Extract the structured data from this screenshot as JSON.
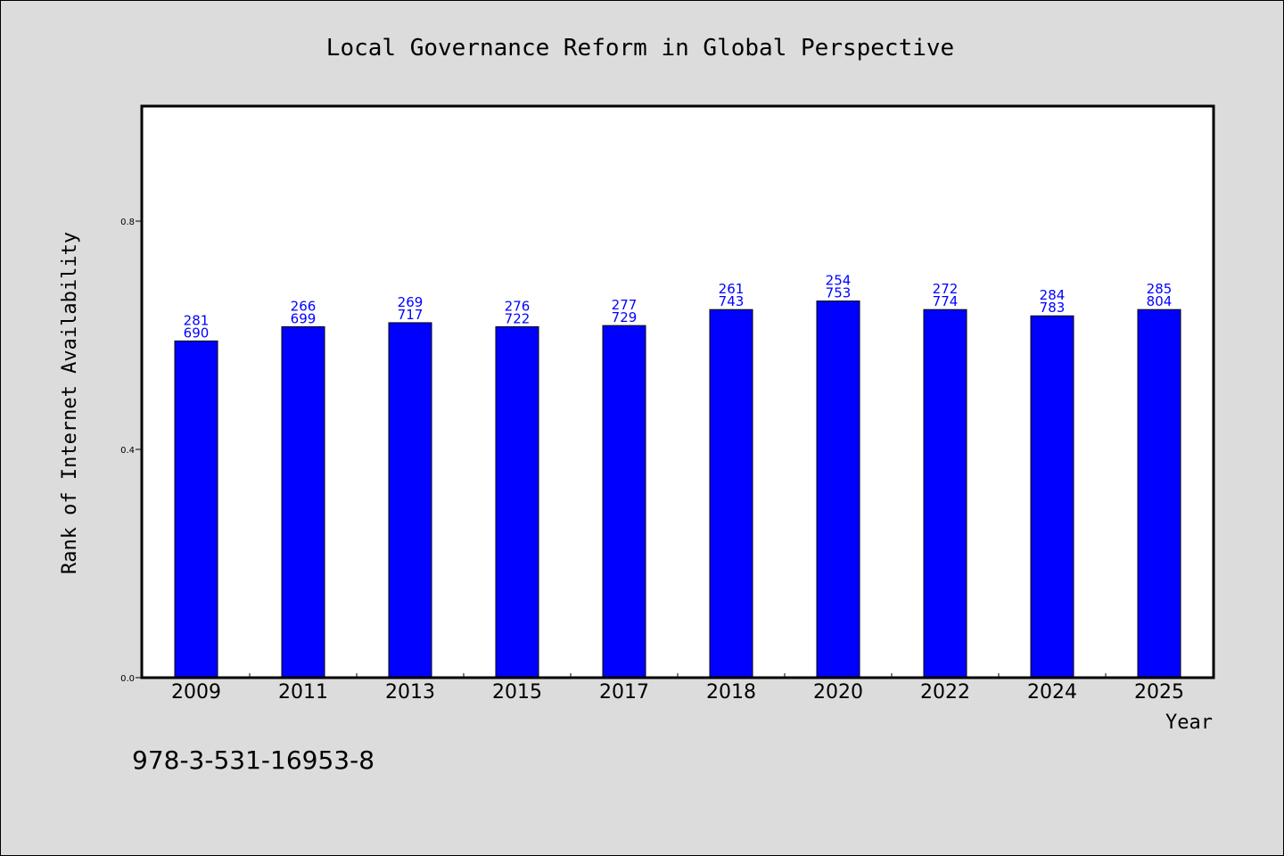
{
  "chart_data": {
    "type": "bar",
    "title": "Local Governance Reform in Global Perspective",
    "xlabel": "Year",
    "ylabel": "Rank of Internet Availability",
    "categories": [
      "2009",
      "2011",
      "2013",
      "2015",
      "2017",
      "2018",
      "2020",
      "2022",
      "2024",
      "2025"
    ],
    "values": [
      0.59,
      0.615,
      0.622,
      0.615,
      0.617,
      0.645,
      0.66,
      0.645,
      0.634,
      0.645
    ],
    "bar_labels": [
      [
        "281",
        "690"
      ],
      [
        "266",
        "699"
      ],
      [
        "269",
        "717"
      ],
      [
        "276",
        "722"
      ],
      [
        "277",
        "729"
      ],
      [
        "261",
        "743"
      ],
      [
        "254",
        "753"
      ],
      [
        "272",
        "774"
      ],
      [
        "284",
        "783"
      ],
      [
        "285",
        "804"
      ]
    ],
    "ylim": [
      0,
      1.0
    ],
    "yticks": [
      0.0,
      0.4,
      0.8
    ],
    "ytick_labels": [
      "0.0",
      "0.4",
      "0.8"
    ],
    "grid": false,
    "legend": "none",
    "colors": {
      "bar": "#0000ff",
      "bar_label": "#0000ff",
      "background": "#dcdcdc",
      "plot_background": "#ffffff"
    }
  },
  "footer": {
    "isbn": "978-3-531-16953-8"
  }
}
